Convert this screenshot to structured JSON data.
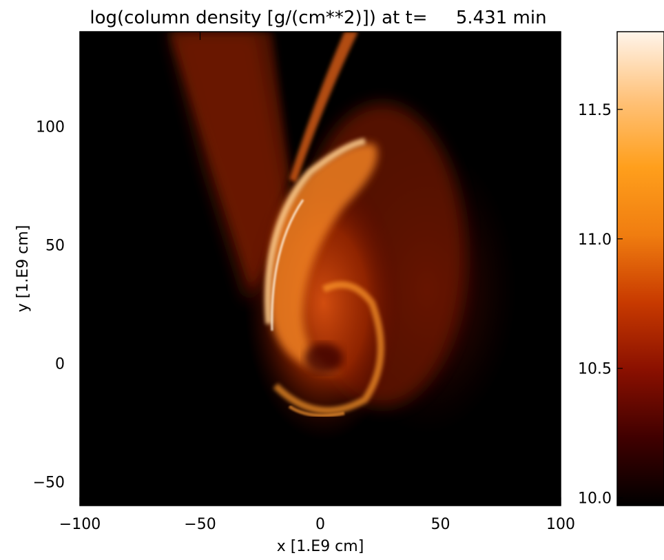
{
  "chart_data": {
    "type": "heatmap",
    "title": "log(column density [g/(cm**2)]) at t=     5.431 min",
    "xlabel": "x [1.E9 cm]",
    "ylabel": "y [1.E9 cm]",
    "xlim": [
      -100,
      100
    ],
    "ylim": [
      -60,
      140
    ],
    "x_ticks": [
      -100,
      -50,
      0,
      50,
      100
    ],
    "x_tick_labels": [
      "−100",
      "−50",
      "0",
      "50",
      "100"
    ],
    "y_ticks": [
      -50,
      0,
      50,
      100
    ],
    "y_tick_labels": [
      "−50",
      "0",
      "50",
      "100"
    ],
    "colorbar": {
      "range": [
        9.97,
        11.8
      ],
      "ticks": [
        10.0,
        10.5,
        11.0,
        11.5
      ],
      "tick_labels": [
        "10.0",
        "10.5",
        "11.0",
        "11.5"
      ],
      "colors": [
        "#000000",
        "#400000",
        "#8a1000",
        "#c83a00",
        "#f07d10",
        "#ff9f1c",
        "#ffc27a",
        "#fff4ea"
      ]
    },
    "grid": false,
    "legend": "none"
  }
}
